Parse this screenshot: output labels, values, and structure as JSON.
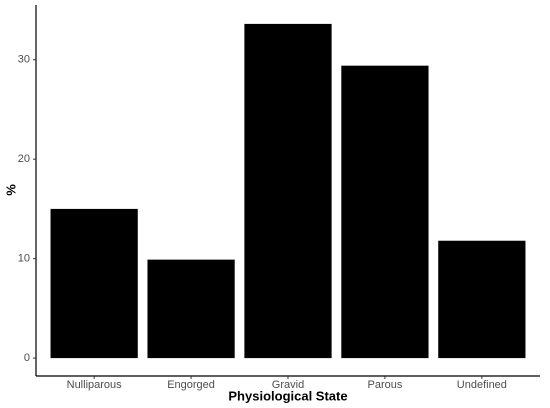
{
  "chart_data": {
    "type": "bar",
    "x_label": "Physiological State",
    "y_label": "%",
    "categories": [
      "Nulliparous",
      "Engorged",
      "Gravid",
      "Parous",
      "Undefined"
    ],
    "values": [
      15.0,
      9.9,
      33.6,
      29.4,
      11.8
    ],
    "color": "#000000",
    "ylim": [
      -1.8,
      35.5
    ],
    "yticks": [
      0,
      10,
      20,
      30
    ],
    "grid": false
  }
}
